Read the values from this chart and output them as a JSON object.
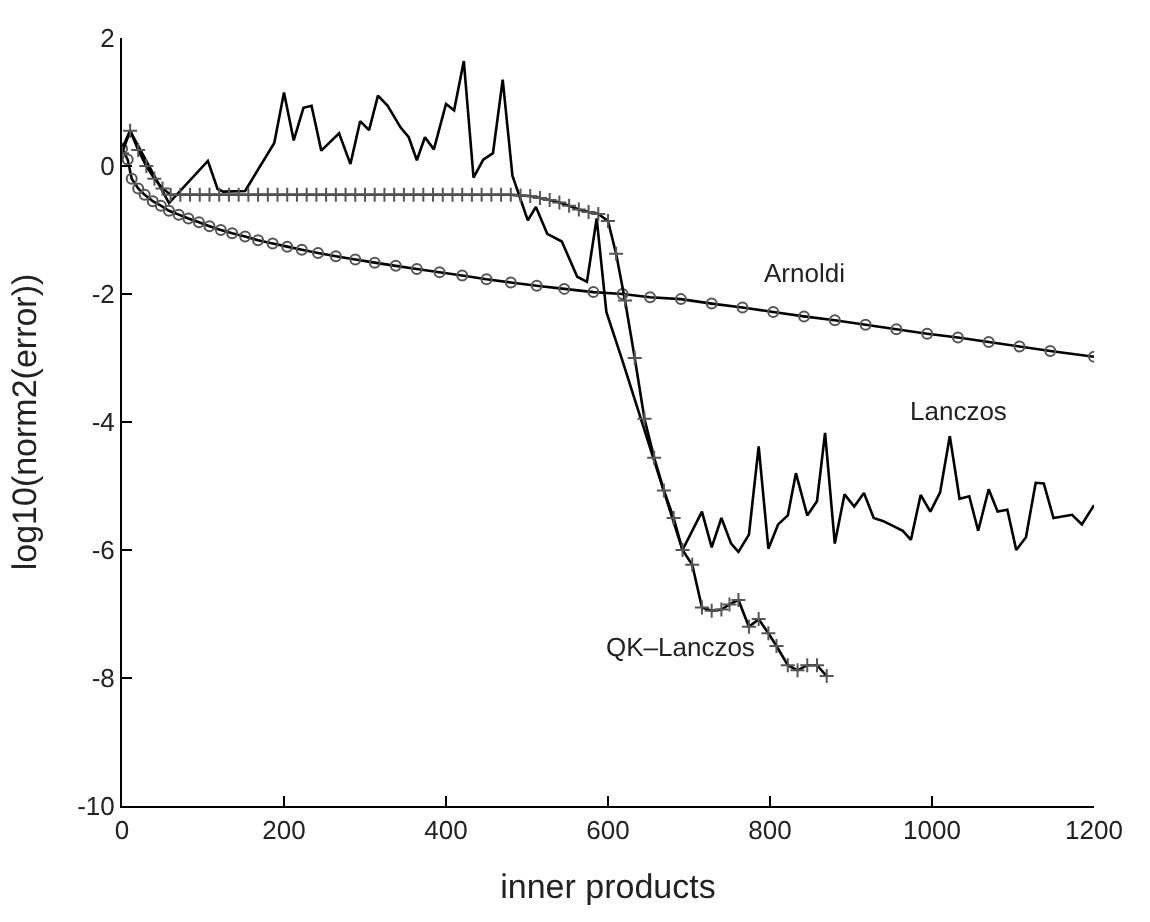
{
  "chart_data": {
    "type": "line",
    "xlabel": "inner products",
    "ylabel": "log10(norm2(error))",
    "xlim": [
      0,
      1200
    ],
    "xticks": [
      0,
      200,
      400,
      600,
      800,
      1000,
      1200
    ],
    "ylim": [
      -10,
      2
    ],
    "yticks": [
      -10,
      -8,
      -6,
      -4,
      -2,
      0,
      2
    ],
    "grid": false,
    "legend": false,
    "line_style": "solid",
    "series": [
      {
        "name": "Arnoldi",
        "color": "#000000",
        "marker": "circle",
        "x": [
          0,
          7,
          12,
          20,
          28,
          38,
          48,
          58,
          70,
          82,
          95,
          108,
          122,
          136,
          152,
          168,
          186,
          204,
          222,
          242,
          264,
          288,
          312,
          338,
          364,
          392,
          420,
          450,
          480,
          512,
          546,
          582,
          618,
          652,
          690,
          728,
          766,
          804,
          842,
          880,
          918,
          956,
          994,
          1032,
          1070,
          1108,
          1146,
          1200
        ],
        "values": [
          0.27,
          0.1,
          -0.2,
          -0.35,
          -0.45,
          -0.55,
          -0.62,
          -0.7,
          -0.76,
          -0.82,
          -0.88,
          -0.94,
          -1.0,
          -1.05,
          -1.1,
          -1.16,
          -1.21,
          -1.26,
          -1.31,
          -1.36,
          -1.41,
          -1.46,
          -1.51,
          -1.56,
          -1.61,
          -1.66,
          -1.71,
          -1.77,
          -1.82,
          -1.87,
          -1.92,
          -1.97,
          -2.0,
          -2.05,
          -2.08,
          -2.15,
          -2.21,
          -2.28,
          -2.35,
          -2.41,
          -2.48,
          -2.55,
          -2.62,
          -2.68,
          -2.75,
          -2.82,
          -2.89,
          -2.98
        ]
      },
      {
        "name": "Lanczos",
        "color": "#000000",
        "marker": "none",
        "x": [
          0,
          10,
          58,
          106,
          118,
          125,
          152,
          188,
          200,
          212,
          224,
          234,
          246,
          268,
          282,
          294,
          305,
          316,
          328,
          344,
          354,
          364,
          374,
          385,
          400,
          410,
          422,
          434,
          446,
          458,
          470,
          482,
          501,
          511,
          525,
          543,
          562,
          574,
          586,
          598,
          618,
          692,
          716,
          728,
          740,
          752,
          761,
          774,
          786,
          798,
          810,
          822,
          832,
          846,
          858,
          868,
          880,
          892,
          904,
          916,
          928,
          940,
          964,
          974,
          986,
          998,
          1010,
          1022,
          1034,
          1046,
          1057,
          1070,
          1081,
          1093,
          1104,
          1116,
          1128,
          1138,
          1150,
          1173,
          1185,
          1200
        ],
        "values": [
          0.27,
          0.55,
          -0.58,
          0.08,
          -0.36,
          -0.4,
          -0.39,
          0.36,
          1.15,
          0.4,
          0.91,
          0.94,
          0.24,
          0.51,
          0.03,
          0.7,
          0.56,
          1.1,
          0.94,
          0.6,
          0.45,
          0.09,
          0.45,
          0.26,
          0.97,
          0.87,
          1.64,
          -0.18,
          0.1,
          0.2,
          1.35,
          -0.15,
          -0.85,
          -0.64,
          -1.06,
          -1.18,
          -1.73,
          -1.81,
          -0.82,
          -2.28,
          -3.05,
          -6.0,
          -5.4,
          -5.96,
          -5.5,
          -5.9,
          -6.03,
          -5.76,
          -4.38,
          -5.98,
          -5.6,
          -5.46,
          -4.8,
          -5.46,
          -5.24,
          -4.17,
          -5.9,
          -5.13,
          -5.32,
          -5.11,
          -5.5,
          -5.55,
          -5.7,
          -5.84,
          -5.14,
          -5.4,
          -5.1,
          -4.22,
          -5.2,
          -5.16,
          -5.7,
          -5.05,
          -5.4,
          -5.37,
          -6.0,
          -5.8,
          -4.95,
          -4.96,
          -5.5,
          -5.45,
          -5.6,
          -5.3
        ]
      },
      {
        "name": "QK–Lanczos",
        "color": "#000000",
        "marker": "cross",
        "x": [
          0,
          10,
          20,
          30,
          40,
          50,
          60,
          72,
          84,
          96,
          108,
          120,
          132,
          144,
          156,
          168,
          180,
          192,
          204,
          216,
          228,
          240,
          252,
          264,
          276,
          288,
          300,
          312,
          324,
          336,
          348,
          360,
          372,
          384,
          396,
          408,
          420,
          432,
          444,
          456,
          468,
          480,
          492,
          504,
          516,
          528,
          540,
          552,
          564,
          576,
          588,
          600,
          610,
          621,
          633,
          645,
          657,
          669,
          681,
          692,
          704,
          716,
          728,
          740,
          750,
          761,
          774,
          786,
          798,
          808,
          822,
          834,
          846,
          858,
          870
        ],
        "values": [
          0.2,
          0.55,
          0.25,
          0.0,
          -0.2,
          -0.35,
          -0.45,
          -0.45,
          -0.45,
          -0.45,
          -0.45,
          -0.45,
          -0.45,
          -0.45,
          -0.45,
          -0.45,
          -0.45,
          -0.45,
          -0.45,
          -0.45,
          -0.45,
          -0.45,
          -0.45,
          -0.45,
          -0.45,
          -0.45,
          -0.45,
          -0.45,
          -0.45,
          -0.45,
          -0.45,
          -0.45,
          -0.45,
          -0.45,
          -0.45,
          -0.45,
          -0.45,
          -0.45,
          -0.45,
          -0.45,
          -0.45,
          -0.45,
          -0.46,
          -0.47,
          -0.5,
          -0.53,
          -0.57,
          -0.62,
          -0.68,
          -0.72,
          -0.75,
          -0.86,
          -1.37,
          -2.1,
          -3.0,
          -3.95,
          -4.56,
          -5.07,
          -5.5,
          -6.0,
          -6.23,
          -6.9,
          -6.95,
          -6.93,
          -6.85,
          -6.78,
          -7.2,
          -7.08,
          -7.3,
          -7.5,
          -7.8,
          -7.88,
          -7.8,
          -7.8,
          -7.97
        ]
      }
    ]
  }
}
